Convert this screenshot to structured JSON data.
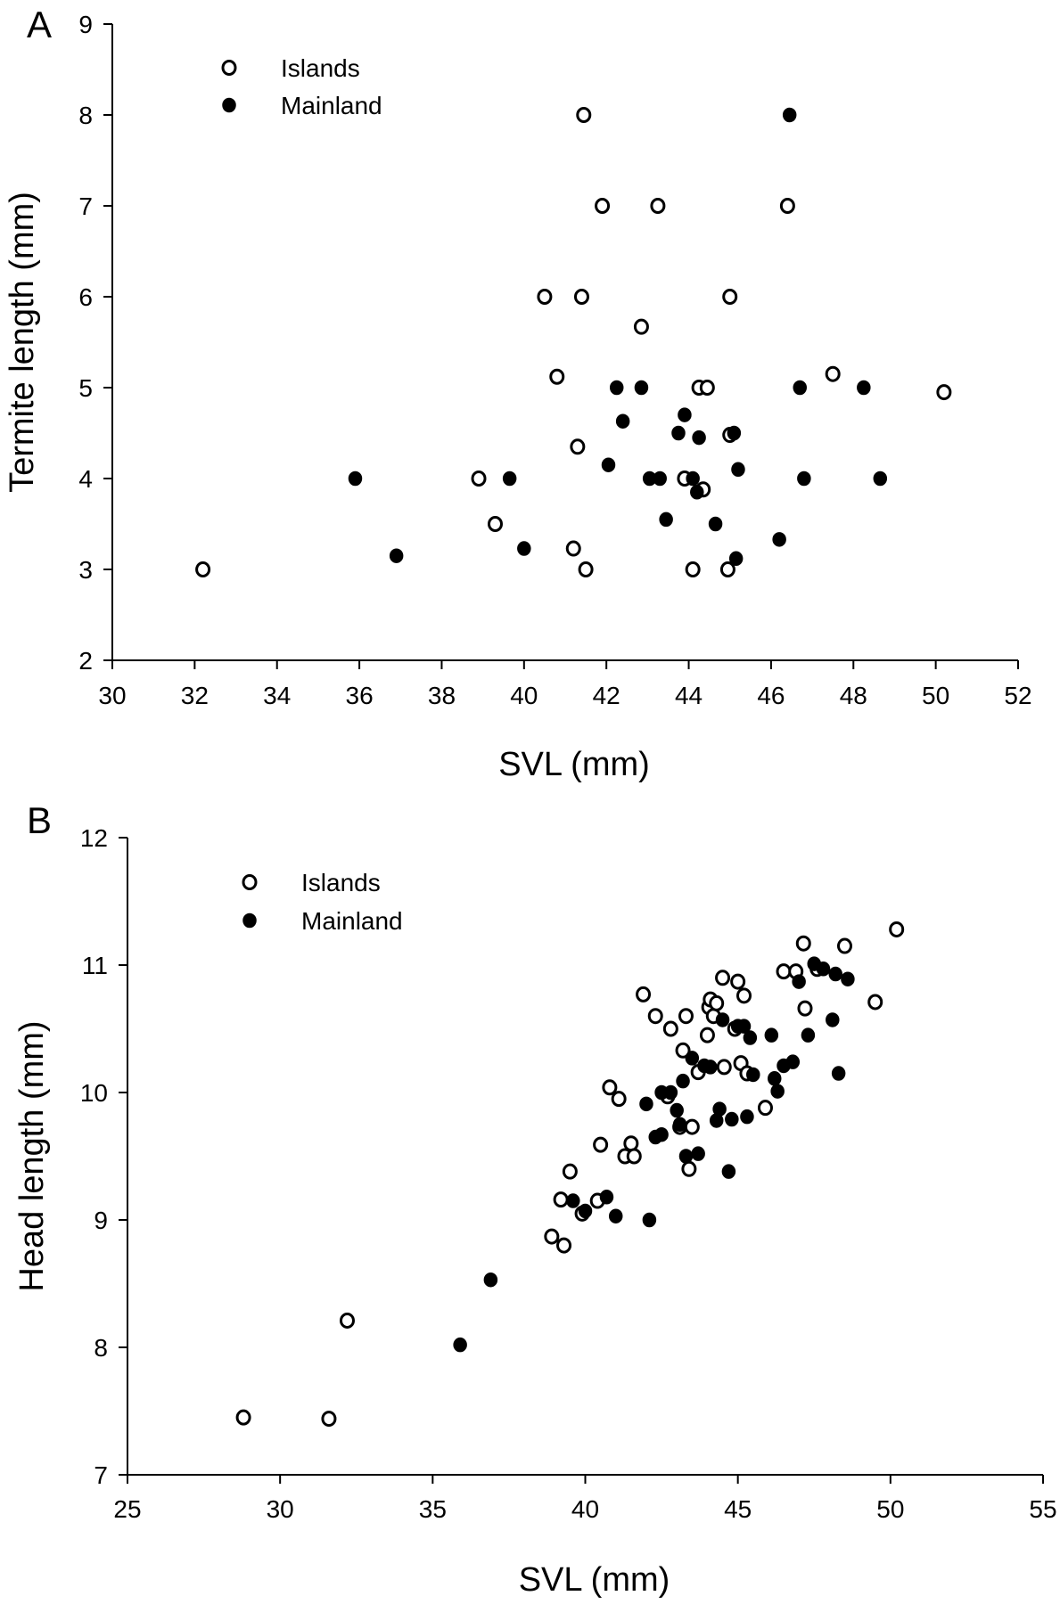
{
  "chart_data": [
    {
      "panel_label": "A",
      "type": "scatter",
      "xlabel": "SVL (mm)",
      "ylabel": "Termite length (mm)",
      "xlim": [
        30,
        52
      ],
      "ylim": [
        2,
        9
      ],
      "xticks": [
        30,
        32,
        34,
        36,
        38,
        40,
        42,
        44,
        46,
        48,
        50,
        52
      ],
      "yticks": [
        2,
        3,
        4,
        5,
        6,
        7,
        8,
        9
      ],
      "legend": {
        "position": "top-left"
      },
      "series": [
        {
          "name": "Islands",
          "marker": "open-circle",
          "points": [
            [
              32.2,
              3.0
            ],
            [
              38.9,
              4.0
            ],
            [
              39.3,
              3.5
            ],
            [
              40.5,
              6.0
            ],
            [
              40.8,
              5.12
            ],
            [
              41.2,
              3.23
            ],
            [
              41.3,
              4.35
            ],
            [
              41.4,
              6.0
            ],
            [
              41.45,
              8.0
            ],
            [
              41.5,
              3.0
            ],
            [
              41.9,
              7.0
            ],
            [
              42.85,
              5.67
            ],
            [
              43.25,
              7.0
            ],
            [
              43.9,
              4.0
            ],
            [
              44.1,
              3.0
            ],
            [
              44.25,
              5.0
            ],
            [
              44.35,
              3.88
            ],
            [
              44.45,
              5.0
            ],
            [
              44.95,
              3.0
            ],
            [
              45.0,
              4.48
            ],
            [
              45.0,
              6.0
            ],
            [
              46.4,
              7.0
            ],
            [
              47.5,
              5.15
            ],
            [
              50.2,
              4.95
            ]
          ]
        },
        {
          "name": "Mainland",
          "marker": "filled-circle",
          "points": [
            [
              35.9,
              4.0
            ],
            [
              36.9,
              3.15
            ],
            [
              39.65,
              4.0
            ],
            [
              40.0,
              3.23
            ],
            [
              42.05,
              4.15
            ],
            [
              42.25,
              5.0
            ],
            [
              42.4,
              4.63
            ],
            [
              42.85,
              5.0
            ],
            [
              43.05,
              4.0
            ],
            [
              43.3,
              4.0
            ],
            [
              43.45,
              3.55
            ],
            [
              43.75,
              4.5
            ],
            [
              43.9,
              4.7
            ],
            [
              44.1,
              4.0
            ],
            [
              44.25,
              4.45
            ],
            [
              44.2,
              3.85
            ],
            [
              44.65,
              3.5
            ],
            [
              45.1,
              4.5
            ],
            [
              45.15,
              3.12
            ],
            [
              45.2,
              4.1
            ],
            [
              46.2,
              3.33
            ],
            [
              46.45,
              8.0
            ],
            [
              46.7,
              5.0
            ],
            [
              46.8,
              4.0
            ],
            [
              48.25,
              5.0
            ],
            [
              48.65,
              4.0
            ]
          ]
        }
      ]
    },
    {
      "panel_label": "B",
      "type": "scatter",
      "xlabel": "SVL (mm)",
      "ylabel": "Head length (mm)",
      "xlim": [
        25,
        55
      ],
      "ylim": [
        7,
        12
      ],
      "xticks": [
        25,
        30,
        35,
        40,
        45,
        50,
        55
      ],
      "yticks": [
        7,
        8,
        9,
        10,
        11,
        12
      ],
      "legend": {
        "position": "top-left"
      },
      "series": [
        {
          "name": "Islands",
          "marker": "open-circle",
          "points": [
            [
              28.8,
              7.45
            ],
            [
              31.6,
              7.44
            ],
            [
              32.2,
              8.21
            ],
            [
              38.9,
              8.87
            ],
            [
              39.3,
              8.8
            ],
            [
              39.2,
              9.16
            ],
            [
              39.5,
              9.38
            ],
            [
              39.9,
              9.05
            ],
            [
              40.4,
              9.15
            ],
            [
              40.5,
              9.59
            ],
            [
              40.8,
              10.04
            ],
            [
              41.1,
              9.95
            ],
            [
              41.3,
              9.5
            ],
            [
              41.5,
              9.6
            ],
            [
              41.6,
              9.5
            ],
            [
              41.9,
              10.77
            ],
            [
              42.3,
              10.6
            ],
            [
              42.7,
              9.97
            ],
            [
              42.8,
              10.5
            ],
            [
              43.1,
              9.73
            ],
            [
              43.2,
              10.33
            ],
            [
              43.3,
              10.6
            ],
            [
              43.4,
              9.4
            ],
            [
              43.5,
              9.73
            ],
            [
              43.7,
              10.16
            ],
            [
              44.0,
              10.45
            ],
            [
              44.05,
              10.67
            ],
            [
              44.1,
              10.73
            ],
            [
              44.2,
              10.6
            ],
            [
              44.3,
              10.7
            ],
            [
              44.5,
              10.9
            ],
            [
              44.55,
              10.2
            ],
            [
              44.9,
              10.5
            ],
            [
              45.0,
              10.87
            ],
            [
              45.1,
              10.23
            ],
            [
              45.2,
              10.76
            ],
            [
              45.3,
              10.15
            ],
            [
              45.9,
              9.88
            ],
            [
              46.5,
              10.95
            ],
            [
              46.9,
              10.95
            ],
            [
              47.2,
              10.66
            ],
            [
              47.15,
              11.17
            ],
            [
              47.6,
              10.97
            ],
            [
              48.5,
              11.15
            ],
            [
              49.5,
              10.71
            ],
            [
              50.2,
              11.28
            ]
          ]
        },
        {
          "name": "Mainland",
          "marker": "filled-circle",
          "points": [
            [
              35.9,
              8.02
            ],
            [
              36.9,
              8.53
            ],
            [
              39.6,
              9.15
            ],
            [
              40.0,
              9.07
            ],
            [
              40.7,
              9.18
            ],
            [
              41.0,
              9.03
            ],
            [
              42.0,
              9.91
            ],
            [
              42.1,
              9.0
            ],
            [
              42.3,
              9.65
            ],
            [
              42.5,
              9.67
            ],
            [
              42.5,
              10.0
            ],
            [
              42.8,
              10.0
            ],
            [
              43.0,
              9.86
            ],
            [
              43.1,
              9.75
            ],
            [
              43.2,
              10.09
            ],
            [
              43.3,
              9.5
            ],
            [
              43.5,
              10.27
            ],
            [
              43.7,
              9.52
            ],
            [
              43.9,
              10.21
            ],
            [
              44.1,
              10.2
            ],
            [
              44.3,
              9.78
            ],
            [
              44.4,
              9.87
            ],
            [
              44.5,
              10.57
            ],
            [
              44.7,
              9.38
            ],
            [
              44.8,
              9.79
            ],
            [
              45.0,
              10.52
            ],
            [
              45.2,
              10.52
            ],
            [
              45.3,
              9.81
            ],
            [
              45.4,
              10.43
            ],
            [
              45.5,
              10.14
            ],
            [
              46.1,
              10.45
            ],
            [
              46.2,
              10.11
            ],
            [
              46.3,
              10.01
            ],
            [
              46.5,
              10.21
            ],
            [
              46.8,
              10.24
            ],
            [
              47.0,
              10.87
            ],
            [
              47.3,
              10.45
            ],
            [
              47.5,
              11.01
            ],
            [
              47.8,
              10.97
            ],
            [
              48.1,
              10.57
            ],
            [
              48.3,
              10.15
            ],
            [
              48.2,
              10.93
            ],
            [
              48.6,
              10.89
            ]
          ]
        }
      ]
    }
  ]
}
